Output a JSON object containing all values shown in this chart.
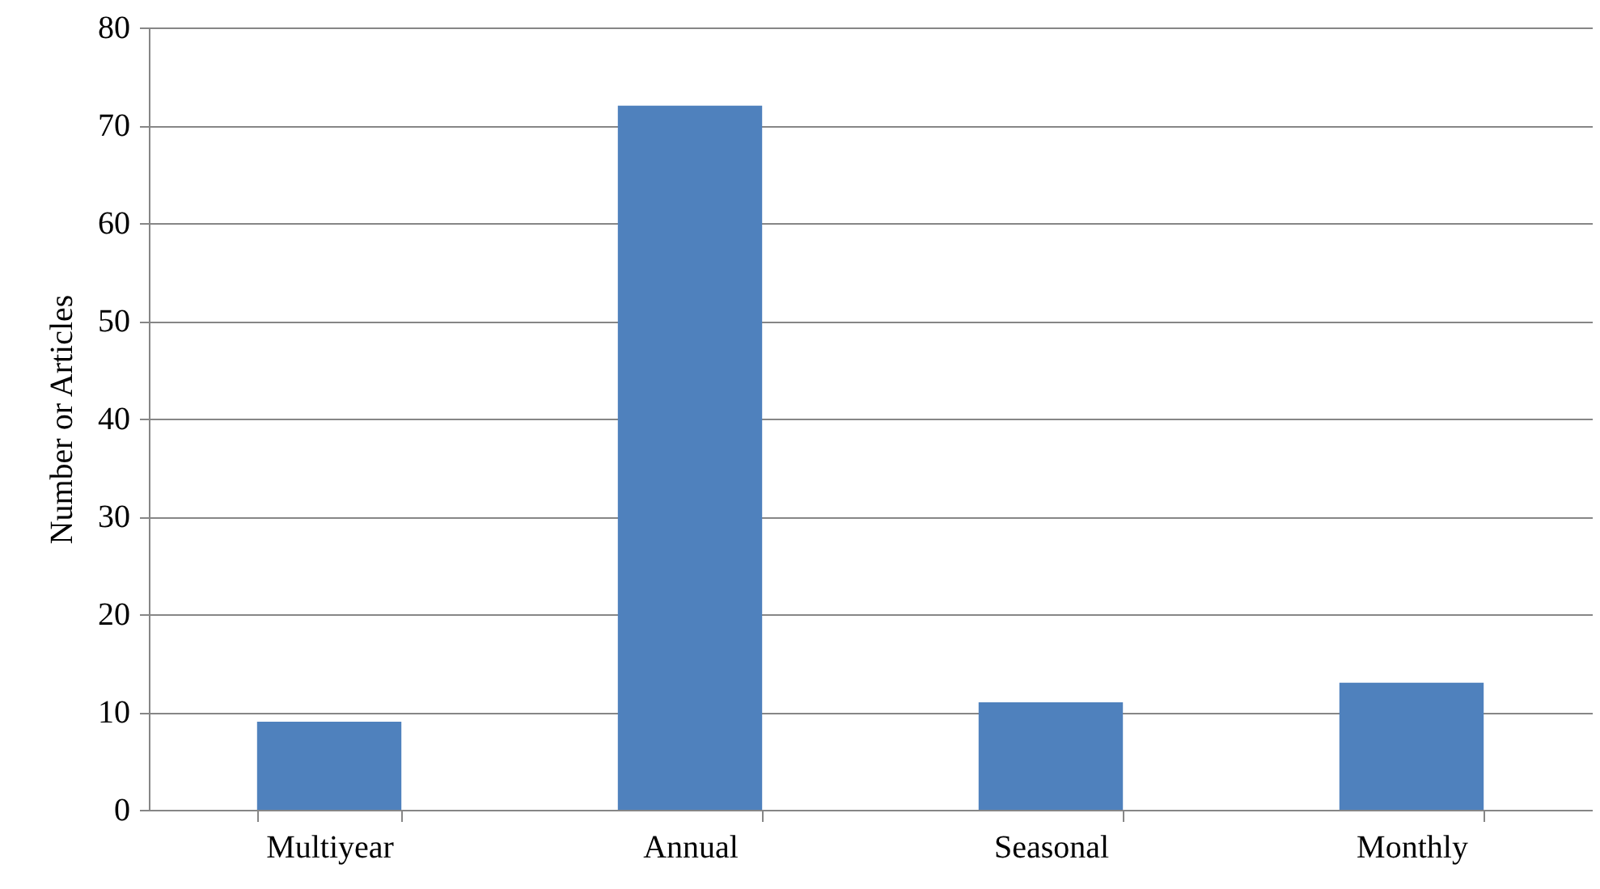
{
  "chart_data": {
    "type": "bar",
    "ylabel": "Number or Articles",
    "categories": [
      "Multiyear",
      "Annual",
      "Seasonal",
      "Monthly"
    ],
    "values": [
      9,
      72,
      11,
      13
    ],
    "color": "#4f81bd",
    "ylim": [
      0,
      80
    ],
    "yticks": [
      0,
      10,
      20,
      30,
      40,
      50,
      60,
      70,
      80
    ],
    "grid": "y"
  }
}
